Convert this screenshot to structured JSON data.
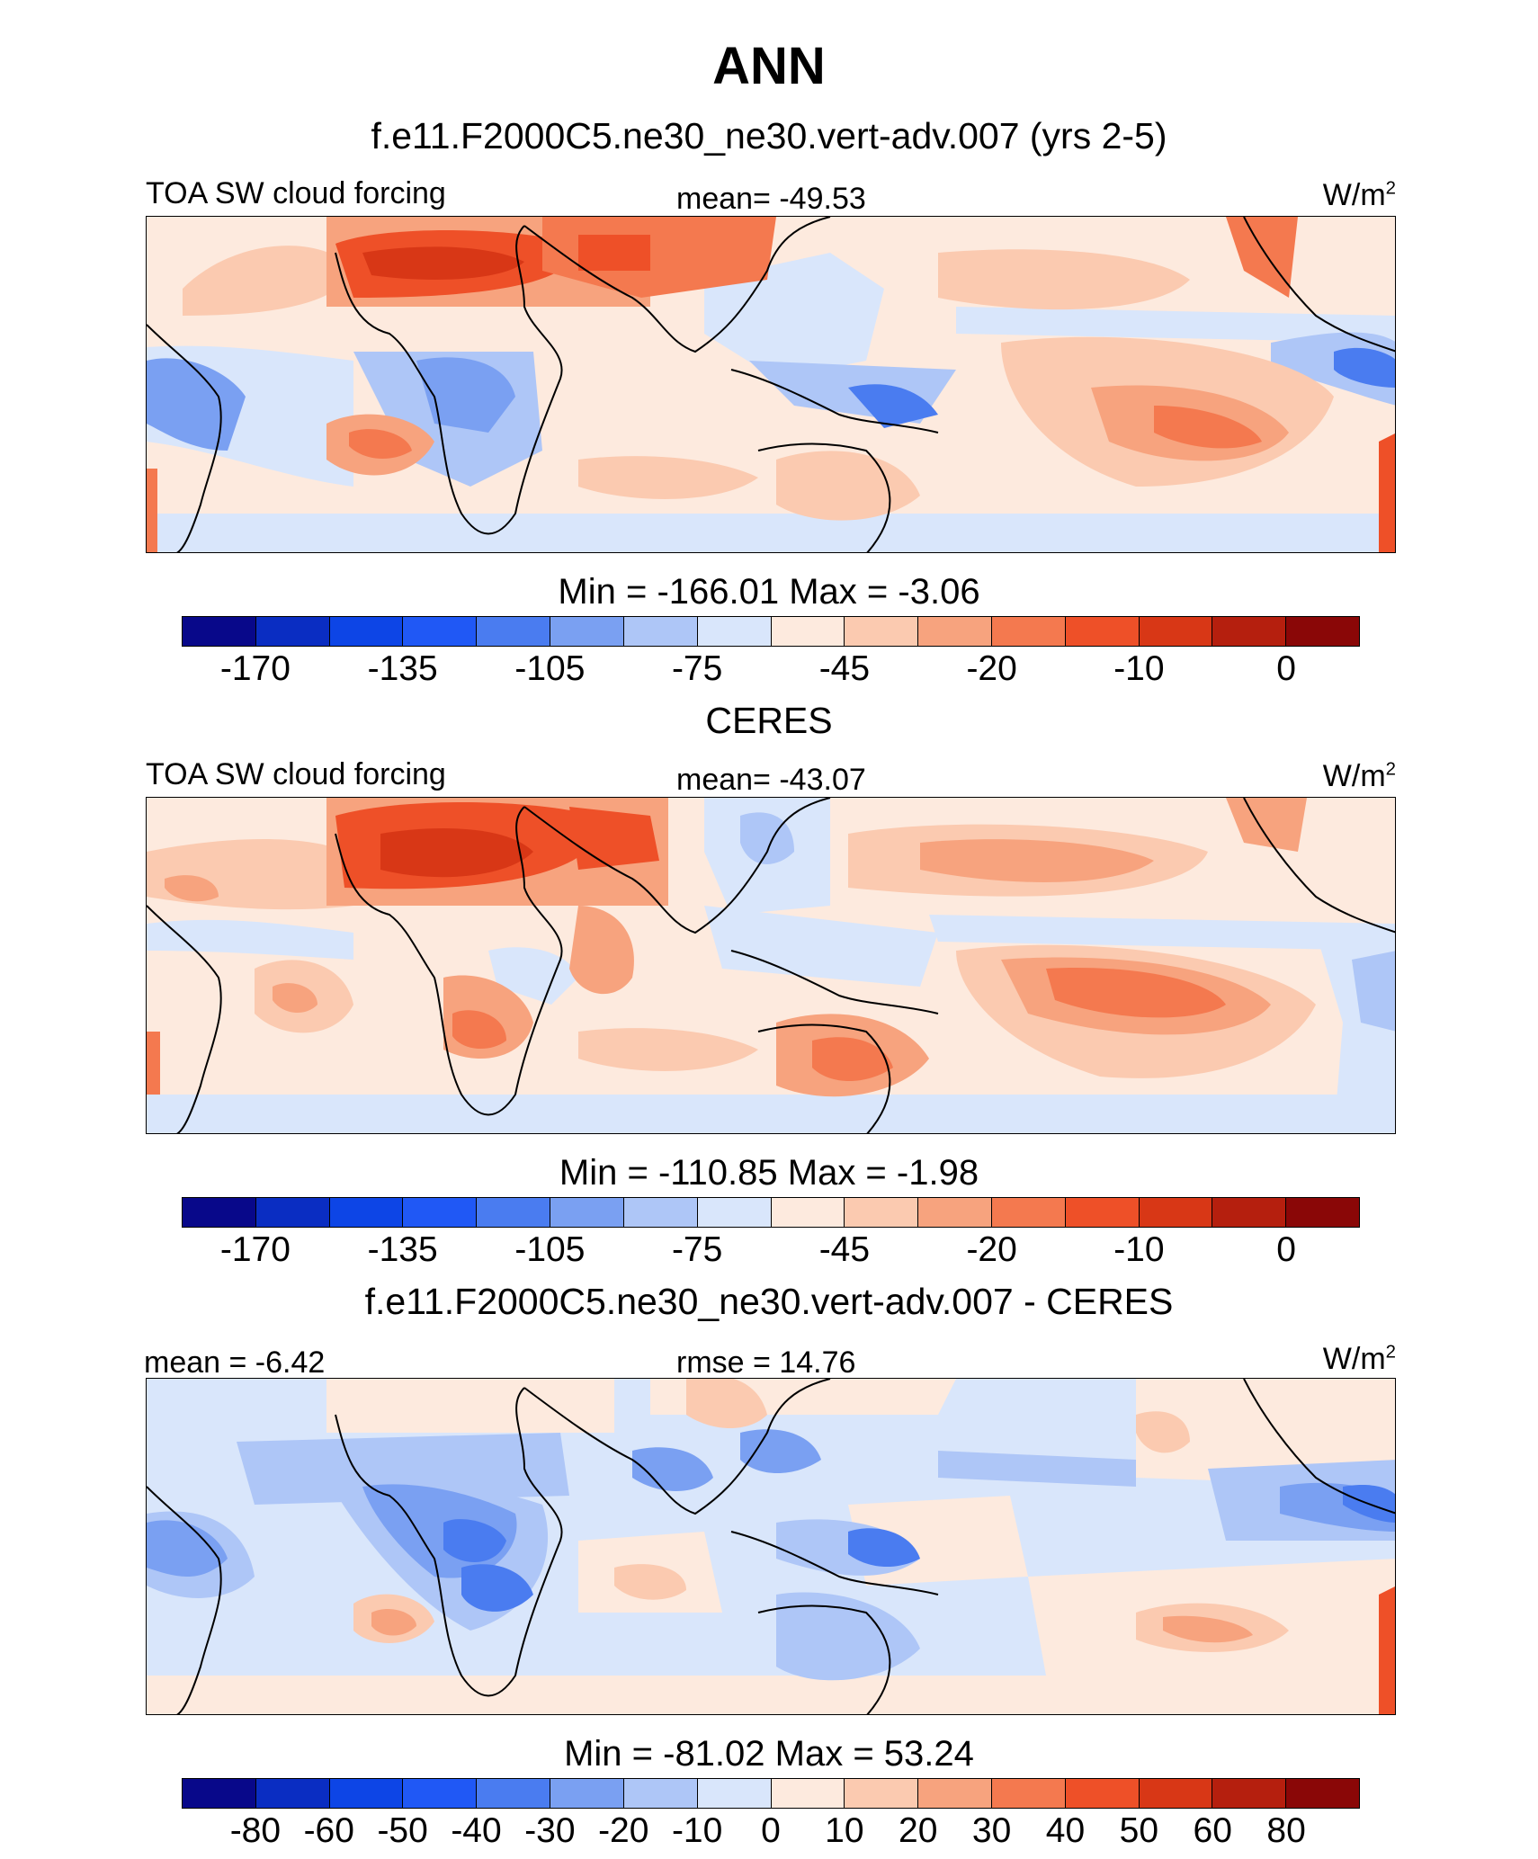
{
  "title": "ANN",
  "palette": [
    "#08088a",
    "#0a2dc2",
    "#0d45e6",
    "#2058f5",
    "#4a7cf0",
    "#7aa0f2",
    "#aec6f7",
    "#d9e6fb",
    "#fdeade",
    "#fbcab0",
    "#f7a37e",
    "#f4794f",
    "#ee5028",
    "#d83716",
    "#b51f0e",
    "#8a0707"
  ],
  "panels": [
    {
      "id": "model",
      "title": "f.e11.F2000C5.ne30_ne30.vert-adv.007 (yrs 2-5)",
      "left_label": "TOA SW cloud forcing",
      "center_label": "mean= -49.53",
      "units": "W/m",
      "units_sup": "2",
      "minmax": "Min = -166.01 Max =  -3.06",
      "ticks": [
        "-170",
        "-135",
        "-105",
        "-75",
        "-45",
        "-20",
        "-10",
        "0"
      ]
    },
    {
      "id": "obs",
      "title": "CERES",
      "left_label": "TOA SW cloud forcing",
      "center_label": "mean= -43.07",
      "units": "W/m",
      "units_sup": "2",
      "minmax": "Min = -110.85 Max =  -1.98",
      "ticks": [
        "-170",
        "-135",
        "-105",
        "-75",
        "-45",
        "-20",
        "-10",
        "0"
      ]
    },
    {
      "id": "diff",
      "title": "f.e11.F2000C5.ne30_ne30.vert-adv.007 - CERES",
      "left_label": "mean =  -6.42",
      "center_label": "rmse =  14.76",
      "units": "W/m",
      "units_sup": "2",
      "minmax": "Min = -81.02 Max =  53.24",
      "ticks": [
        "-80",
        "-60",
        "-50",
        "-40",
        "-30",
        "-20",
        "-10",
        "0",
        "10",
        "20",
        "30",
        "40",
        "50",
        "60",
        "80"
      ]
    }
  ]
}
